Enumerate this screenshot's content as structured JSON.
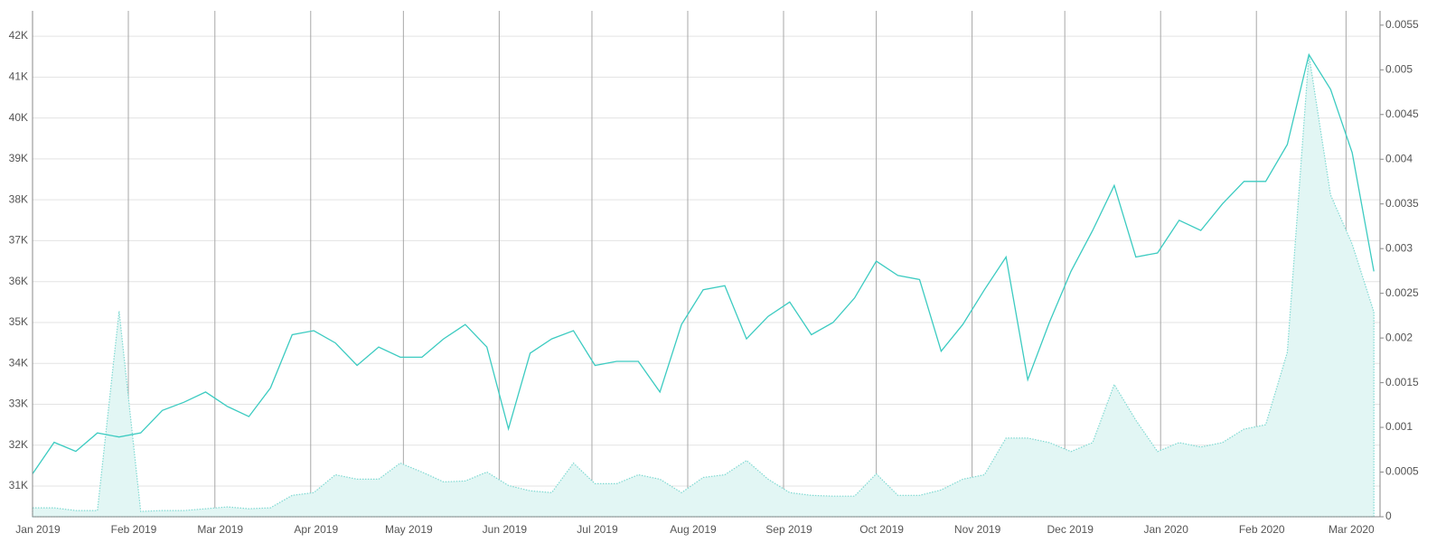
{
  "chart_data": {
    "type": "line",
    "grid": true,
    "x": [
      "2019-01-01",
      "2019-01-08",
      "2019-01-15",
      "2019-01-22",
      "2019-01-29",
      "2019-02-05",
      "2019-02-12",
      "2019-02-19",
      "2019-02-26",
      "2019-03-05",
      "2019-03-12",
      "2019-03-19",
      "2019-03-26",
      "2019-04-02",
      "2019-04-09",
      "2019-04-16",
      "2019-04-23",
      "2019-04-30",
      "2019-05-07",
      "2019-05-14",
      "2019-05-21",
      "2019-05-28",
      "2019-06-04",
      "2019-06-11",
      "2019-06-18",
      "2019-06-25",
      "2019-07-02",
      "2019-07-09",
      "2019-07-16",
      "2019-07-23",
      "2019-07-30",
      "2019-08-06",
      "2019-08-13",
      "2019-08-20",
      "2019-08-27",
      "2019-09-03",
      "2019-09-10",
      "2019-09-17",
      "2019-09-24",
      "2019-10-01",
      "2019-10-08",
      "2019-10-15",
      "2019-10-22",
      "2019-10-29",
      "2019-11-05",
      "2019-11-12",
      "2019-11-19",
      "2019-11-26",
      "2019-12-03",
      "2019-12-10",
      "2019-12-17",
      "2019-12-24",
      "2019-12-31",
      "2020-01-07",
      "2020-01-14",
      "2020-01-21",
      "2020-01-28",
      "2020-02-04",
      "2020-02-11",
      "2020-02-18",
      "2020-02-25",
      "2020-03-03",
      "2020-03-10"
    ],
    "series": [
      {
        "color": "#3ccbc1",
        "values": [
          31300,
          32070,
          31850,
          32300,
          32200,
          32300,
          32850,
          33050,
          33300,
          32950,
          32700,
          33400,
          34700,
          34800,
          34500,
          33950,
          34400,
          34150,
          34150,
          34600,
          34950,
          34400,
          32400,
          34250,
          34600,
          34800,
          33950,
          34050,
          34050,
          33300,
          34950,
          35800,
          35900,
          34600,
          35150,
          35500,
          34700,
          35000,
          35600,
          36500,
          36150,
          36050,
          34300,
          34950,
          35800,
          36600,
          33600,
          35000,
          36250,
          37250,
          38350,
          36600,
          36700,
          37500,
          37250,
          37900,
          38450,
          38450,
          39350,
          41550,
          40700,
          39150,
          36250
        ]
      },
      {
        "color": "#7fd9d2",
        "fill": "#e2f6f4",
        "axis": "y2",
        "area": true,
        "values": [
          0.0001,
          0.0001,
          7e-05,
          7e-05,
          0.0023,
          6e-05,
          7e-05,
          7e-05,
          9e-05,
          0.00011,
          9e-05,
          0.0001,
          0.00024,
          0.00027,
          0.00047,
          0.00042,
          0.00042,
          0.0006,
          0.0005,
          0.00039,
          0.0004,
          0.0005,
          0.00035,
          0.00029,
          0.00027,
          0.0006,
          0.00037,
          0.00037,
          0.00047,
          0.00042,
          0.00027,
          0.00044,
          0.00047,
          0.00063,
          0.00042,
          0.00027,
          0.00024,
          0.00023,
          0.00023,
          0.00048,
          0.00024,
          0.00024,
          0.0003,
          0.00042,
          0.00047,
          0.00088,
          0.00088,
          0.00083,
          0.00073,
          0.00083,
          0.00148,
          0.00108,
          0.00073,
          0.00083,
          0.00078,
          0.00083,
          0.00098,
          0.00103,
          0.00184,
          0.00517,
          0.0036,
          0.00305,
          0.00229
        ]
      }
    ],
    "xlim": [
      "2019-01-01",
      "2020-03-12"
    ],
    "xticks": [
      {
        "value": "2019-01-01",
        "label": "Jan 2019"
      },
      {
        "value": "2019-02-01",
        "label": "Feb 2019"
      },
      {
        "value": "2019-03-01",
        "label": "Mar 2019"
      },
      {
        "value": "2019-04-01",
        "label": "Apr 2019"
      },
      {
        "value": "2019-05-01",
        "label": "May 2019"
      },
      {
        "value": "2019-06-01",
        "label": "Jun 2019"
      },
      {
        "value": "2019-07-01",
        "label": "Jul 2019"
      },
      {
        "value": "2019-08-01",
        "label": "Aug 2019"
      },
      {
        "value": "2019-09-01",
        "label": "Sep 2019"
      },
      {
        "value": "2019-10-01",
        "label": "Oct 2019"
      },
      {
        "value": "2019-11-01",
        "label": "Nov 2019"
      },
      {
        "value": "2019-12-01",
        "label": "Dec 2019"
      },
      {
        "value": "2020-01-01",
        "label": "Jan 2020"
      },
      {
        "value": "2020-02-01",
        "label": "Feb 2020"
      },
      {
        "value": "2020-03-01",
        "label": "Mar 2020"
      }
    ],
    "ylim": [
      30250,
      42620
    ],
    "yticks": [
      {
        "value": 31000,
        "label": "31K"
      },
      {
        "value": 32000,
        "label": "32K"
      },
      {
        "value": 33000,
        "label": "33K"
      },
      {
        "value": 34000,
        "label": "34K"
      },
      {
        "value": 35000,
        "label": "35K"
      },
      {
        "value": 36000,
        "label": "36K"
      },
      {
        "value": 37000,
        "label": "37K"
      },
      {
        "value": 38000,
        "label": "38K"
      },
      {
        "value": 39000,
        "label": "39K"
      },
      {
        "value": 40000,
        "label": "40K"
      },
      {
        "value": 41000,
        "label": "41K"
      },
      {
        "value": 42000,
        "label": "42K"
      }
    ],
    "y2lim": [
      0,
      0.00566
    ],
    "y2ticks": [
      0,
      0.0005,
      0.001,
      0.0015,
      0.002,
      0.0025,
      0.003,
      0.0035,
      0.004,
      0.0045,
      0.005,
      0.0055
    ]
  }
}
